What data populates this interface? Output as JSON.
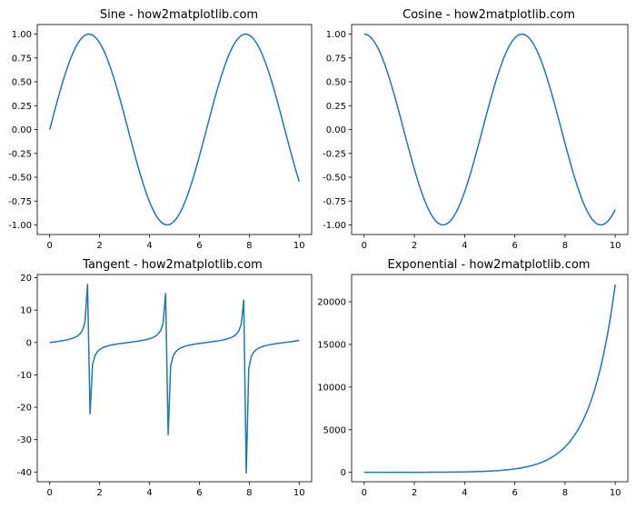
{
  "colors": {
    "line": "#1f77b4"
  },
  "chart_data": [
    {
      "type": "line",
      "function": "sin",
      "title": "Sine - how2matplotlib.com",
      "xlabel": "",
      "ylabel": "",
      "x_range": [
        0,
        10
      ],
      "samples": 100,
      "xlim": [
        -0.5,
        10.5
      ],
      "ylim": [
        -1.1,
        1.1
      ],
      "xticks": [
        0,
        2,
        4,
        6,
        8,
        10
      ],
      "xtick_labels": [
        "0",
        "2",
        "4",
        "6",
        "8",
        "10"
      ],
      "yticks": [
        -1,
        -0.75,
        -0.5,
        -0.25,
        0,
        0.25,
        0.5,
        0.75,
        1
      ],
      "ytick_labels": [
        "-1.00",
        "-0.75",
        "-0.50",
        "-0.25",
        "0.00",
        "0.25",
        "0.50",
        "0.75",
        "1.00"
      ],
      "grid": false
    },
    {
      "type": "line",
      "function": "cos",
      "title": "Cosine - how2matplotlib.com",
      "xlabel": "",
      "ylabel": "",
      "x_range": [
        0,
        10
      ],
      "samples": 100,
      "xlim": [
        -0.5,
        10.5
      ],
      "ylim": [
        -1.1,
        1.1
      ],
      "xticks": [
        0,
        2,
        4,
        6,
        8,
        10
      ],
      "xtick_labels": [
        "0",
        "2",
        "4",
        "6",
        "8",
        "10"
      ],
      "yticks": [
        -1,
        -0.75,
        -0.5,
        -0.25,
        0,
        0.25,
        0.5,
        0.75,
        1
      ],
      "ytick_labels": [
        "-1.00",
        "-0.75",
        "-0.50",
        "-0.25",
        "0.00",
        "0.25",
        "0.50",
        "0.75",
        "1.00"
      ],
      "grid": false
    },
    {
      "type": "line",
      "function": "tan",
      "title": "Tangent - how2matplotlib.com",
      "xlabel": "",
      "ylabel": "",
      "x_range": [
        0,
        10
      ],
      "samples": 100,
      "xlim": [
        -0.5,
        10.5
      ],
      "ylim": [
        -43,
        21
      ],
      "xticks": [
        0,
        2,
        4,
        6,
        8,
        10
      ],
      "xtick_labels": [
        "0",
        "2",
        "4",
        "6",
        "8",
        "10"
      ],
      "yticks": [
        -40,
        -30,
        -20,
        -10,
        0,
        10,
        20
      ],
      "ytick_labels": [
        "-40",
        "-30",
        "-20",
        "-10",
        "0",
        "10",
        "20"
      ],
      "grid": false
    },
    {
      "type": "line",
      "function": "exp",
      "title": "Exponential - how2matplotlib.com",
      "xlabel": "",
      "ylabel": "",
      "x_range": [
        0,
        10
      ],
      "samples": 100,
      "xlim": [
        -0.5,
        10.5
      ],
      "ylim": [
        -1100,
        23200
      ],
      "xticks": [
        0,
        2,
        4,
        6,
        8,
        10
      ],
      "xtick_labels": [
        "0",
        "2",
        "4",
        "6",
        "8",
        "10"
      ],
      "yticks": [
        0,
        5000,
        10000,
        15000,
        20000
      ],
      "ytick_labels": [
        "0",
        "5000",
        "10000",
        "15000",
        "20000"
      ],
      "grid": false
    }
  ]
}
